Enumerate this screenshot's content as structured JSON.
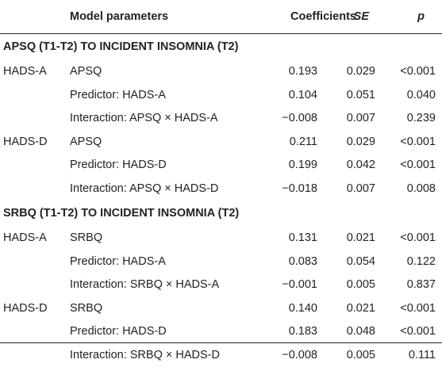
{
  "header": {
    "model_parameters": "Model parameters",
    "coefficients": "Coefficients",
    "se": "SE",
    "p": "p"
  },
  "sections": [
    {
      "title": "APSQ (T1-T2) TO INCIDENT INSOMNIA (T2)",
      "rows": [
        {
          "group": "HADS-A",
          "param": "APSQ",
          "coef": "0.193",
          "se": "0.029",
          "p": "<0.001"
        },
        {
          "group": "",
          "param": "Predictor: HADS-A",
          "coef": "0.104",
          "se": "0.051",
          "p": "0.040"
        },
        {
          "group": "",
          "param": "Interaction: APSQ × HADS-A",
          "coef": "−0.008",
          "se": "0.007",
          "p": "0.239"
        },
        {
          "group": "HADS-D",
          "param": "APSQ",
          "coef": "0.211",
          "se": "0.029",
          "p": "<0.001"
        },
        {
          "group": "",
          "param": "Predictor: HADS-D",
          "coef": "0.199",
          "se": "0.042",
          "p": "<0.001"
        },
        {
          "group": "",
          "param": "Interaction: APSQ × HADS-D",
          "coef": "−0.018",
          "se": "0.007",
          "p": "0.008"
        }
      ]
    },
    {
      "title": "SRBQ (T1-T2) TO INCIDENT INSOMNIA (T2)",
      "rows": [
        {
          "group": "HADS-A",
          "param": "SRBQ",
          "coef": "0.131",
          "se": "0.021",
          "p": "<0.001"
        },
        {
          "group": "",
          "param": "Predictor: HADS-A",
          "coef": "0.083",
          "se": "0.054",
          "p": "0.122"
        },
        {
          "group": "",
          "param": "Interaction: SRBQ × HADS-A",
          "coef": "−0.001",
          "se": "0.005",
          "p": "0.837"
        },
        {
          "group": "HADS-D",
          "param": "SRBQ",
          "coef": "0.140",
          "se": "0.021",
          "p": "<0.001"
        },
        {
          "group": "",
          "param": "Predictor: HADS-D",
          "coef": "0.183",
          "se": "0.048",
          "p": "<0.001"
        },
        {
          "group": "",
          "param": "Interaction: SRBQ × HADS-D",
          "coef": "−0.008",
          "se": "0.005",
          "p": "0.111"
        }
      ]
    }
  ]
}
